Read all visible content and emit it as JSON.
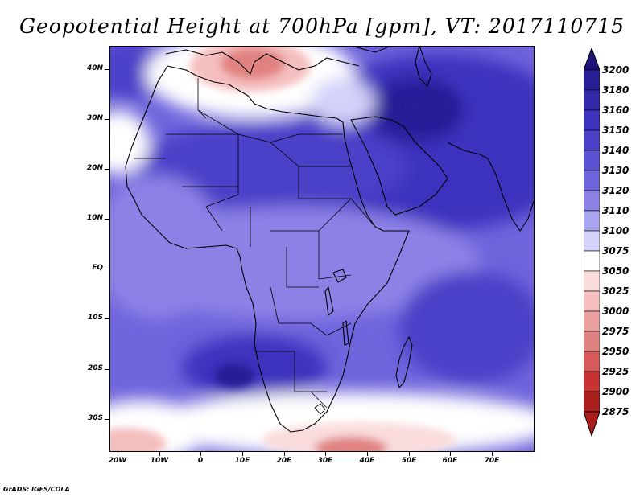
{
  "title": "Geopotential Height at 700hPa [gpm], VT: 2017110715",
  "lat_labels": [
    "40N",
    "30N",
    "20N",
    "10N",
    "EQ",
    "10S",
    "20S",
    "30S"
  ],
  "lon_labels": [
    "20W",
    "10W",
    "0",
    "10E",
    "20E",
    "30E",
    "40E",
    "50E",
    "60E",
    "70E"
  ],
  "colorbar": {
    "labels": [
      "3200",
      "3180",
      "3160",
      "3150",
      "3140",
      "3130",
      "3120",
      "3110",
      "3100",
      "3075",
      "3050",
      "3025",
      "3000",
      "2975",
      "2950",
      "2925",
      "2900",
      "2875"
    ],
    "colors": [
      "#281e96",
      "#3228aa",
      "#3c32be",
      "#4b41c8",
      "#5a50d2",
      "#6e64dc",
      "#8c82e6",
      "#aaa5f0",
      "#d2d2fa",
      "#ffffff",
      "#fadcdc",
      "#f5bebe",
      "#eba0a0",
      "#e18282",
      "#d75a5a",
      "#c83232",
      "#aa1e1e"
    ],
    "top_arrow_color": "#1e1478",
    "bottom_arrow_color": "#aa1e1e"
  },
  "map": {
    "lon_range": [
      -22,
      80
    ],
    "lat_range": [
      -35,
      45
    ]
  },
  "footer": "GrADS: IGES/COLA"
}
